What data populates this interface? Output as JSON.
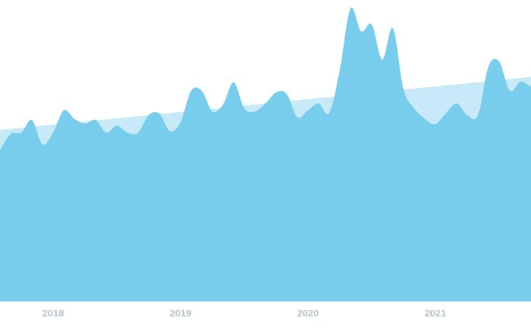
{
  "chart_data": {
    "type": "area",
    "categories": [
      null,
      null,
      null,
      null,
      null,
      "2018",
      null,
      null,
      null,
      null,
      null,
      null,
      null,
      null,
      null,
      null,
      null,
      "2019",
      null,
      null,
      null,
      null,
      null,
      null,
      null,
      null,
      null,
      null,
      null,
      "2020",
      null,
      null,
      null,
      null,
      null,
      null,
      null,
      null,
      null,
      null,
      null,
      "2021",
      null,
      null,
      null,
      null,
      null,
      null,
      null,
      null,
      null
    ],
    "series": [
      {
        "color": "#c8e9f8",
        "values": [
          56.9,
          57.3,
          57.6,
          58.0,
          58.3,
          58.7,
          59.0,
          59.4,
          59.7,
          60.1,
          60.4,
          60.8,
          61.1,
          61.5,
          61.8,
          62.2,
          62.5,
          62.9,
          63.2,
          63.6,
          63.9,
          64.3,
          64.6,
          65.0,
          65.3,
          65.7,
          66.0,
          66.4,
          66.8,
          67.1,
          67.5,
          67.8,
          68.2,
          68.5,
          68.9,
          69.2,
          69.6,
          69.9,
          70.3,
          70.6,
          71.0,
          71.3,
          71.7,
          72.0,
          72.4,
          72.7,
          73.1,
          73.4,
          73.8,
          74.1,
          74.5
        ]
      },
      {
        "color": "#79cdec",
        "values": [
          50.2,
          55.6,
          56.0,
          60.2,
          52.1,
          56.0,
          63.4,
          60.6,
          59.0,
          60.2,
          56.0,
          58.3,
          56.0,
          56.0,
          61.8,
          62.3,
          56.5,
          59.5,
          69.9,
          69.9,
          63.0,
          65.3,
          72.7,
          64.1,
          63.0,
          65.7,
          69.4,
          68.8,
          61.1,
          63.4,
          65.7,
          62.5,
          76.9,
          97.2,
          89.6,
          91.9,
          80.3,
          90.7,
          70.4,
          64.1,
          60.6,
          58.8,
          62.5,
          65.7,
          61.8,
          61.8,
          78.0,
          79.6,
          69.9,
          72.9,
          71.3
        ]
      }
    ],
    "ylim": [
      0,
      100
    ]
  }
}
